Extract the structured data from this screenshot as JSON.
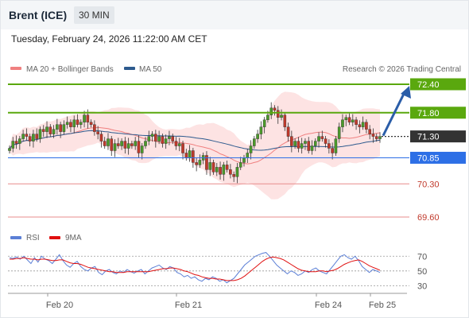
{
  "header": {
    "instrument": "Brent (ICE)",
    "interval": "30 MIN"
  },
  "timestamp": "Tuesday, February 24, 2026 11:22:00 AM CET",
  "legend": [
    {
      "label": "MA 20 + Bollinger Bands",
      "color": "#f08080"
    },
    {
      "label": "MA 50",
      "color": "#2d5a8e"
    }
  ],
  "copyright": "Research © 2026 Trading Central",
  "levels": [
    {
      "label": "72.40",
      "value": 72.4,
      "kind": "resistance"
    },
    {
      "label": "71.80",
      "value": 71.8,
      "kind": "resistance"
    },
    {
      "label": "71.30",
      "value": 71.3,
      "kind": "current"
    },
    {
      "label": "70.85",
      "value": 70.85,
      "kind": "pivot"
    },
    {
      "label": "70.30",
      "value": 70.3,
      "kind": "support"
    },
    {
      "label": "69.60",
      "value": 69.6,
      "kind": "support"
    }
  ],
  "colors": {
    "resistance": "#5aa80e",
    "pivot": "#2d6fe6",
    "current": "#333333",
    "support": "#e88c8c",
    "arrow": "#2a5da8",
    "up": "#4a9a2a",
    "down": "#c0392b",
    "bollinger": "#fcdcdc",
    "ma20": "#f08080",
    "ma50": "#2d5a8e",
    "rsi": "#5b7fd6",
    "rsi_ma": "#e01010"
  },
  "rsi_legend": [
    {
      "label": "RSI",
      "color": "#5b7fd6"
    },
    {
      "label": "9MA",
      "color": "#e01010"
    }
  ],
  "rsi_ticks": [
    "70",
    "50",
    "30"
  ],
  "x_labels": [
    "Feb 20",
    "Feb 21",
    "Feb 24",
    "Feb 25"
  ],
  "chart_data": {
    "type": "candlestick",
    "ylim": [
      69.55,
      72.45
    ],
    "close": [
      71.05,
      71.2,
      71.15,
      71.25,
      71.35,
      71.3,
      71.2,
      71.35,
      71.25,
      71.45,
      71.4,
      71.5,
      71.35,
      71.45,
      71.55,
      71.4,
      71.55,
      71.6,
      71.5,
      71.65,
      71.55,
      71.6,
      71.75,
      71.6,
      71.55,
      71.4,
      71.35,
      71.2,
      71.1,
      71.25,
      71.0,
      71.15,
      71.1,
      71.2,
      71.05,
      71.15,
      71.1,
      71.2,
      70.95,
      71.1,
      71.2,
      71.3,
      71.35,
      71.2,
      71.3,
      71.15,
      71.25,
      71.3,
      71.2,
      71.1,
      71.15,
      70.95,
      70.85,
      71.0,
      70.75,
      70.7,
      70.8,
      70.9,
      70.6,
      70.75,
      70.55,
      70.65,
      70.5,
      70.7,
      70.6,
      70.5,
      70.45,
      70.65,
      70.75,
      70.85,
      70.95,
      71.1,
      71.25,
      71.35,
      71.5,
      71.65,
      71.75,
      71.9,
      71.85,
      71.7,
      71.75,
      71.5,
      71.3,
      71.1,
      71.2,
      71.05,
      71.15,
      71.2,
      71.0,
      71.1,
      71.2,
      71.3,
      71.25,
      71.15,
      71.05,
      70.95,
      71.25,
      71.5,
      71.65,
      71.7,
      71.6,
      71.65,
      71.55,
      71.5,
      71.6,
      71.45,
      71.35,
      71.3,
      71.25,
      71.3
    ]
  },
  "rsi_data": {
    "ylim": [
      25,
      80
    ],
    "rsi": [
      68,
      67,
      69,
      66,
      70,
      65,
      60,
      68,
      62,
      70,
      66,
      64,
      60,
      66,
      72,
      64,
      58,
      55,
      60,
      63,
      56,
      52,
      50,
      54,
      56,
      48,
      45,
      50,
      52,
      48,
      46,
      50,
      48,
      52,
      49,
      47,
      50,
      52,
      46,
      50,
      54,
      56,
      58,
      54,
      52,
      56,
      54,
      48,
      46,
      42,
      44,
      40,
      42,
      38,
      36,
      40,
      38,
      42,
      40,
      36,
      38,
      34,
      37,
      40,
      46,
      52,
      58,
      62,
      66,
      70,
      72,
      74,
      75,
      70,
      64,
      58,
      54,
      50,
      46,
      50,
      48,
      44,
      46,
      50,
      48,
      52,
      54,
      50,
      48,
      46,
      52,
      58,
      64,
      70,
      72,
      68,
      66,
      70,
      64,
      56,
      52,
      48,
      52,
      50,
      48
    ],
    "ma": [
      66,
      66,
      67,
      67,
      68,
      67,
      66,
      66,
      65,
      66,
      66,
      65,
      64,
      64,
      65,
      65,
      63,
      61,
      60,
      60,
      59,
      57,
      55,
      54,
      53,
      52,
      51,
      50,
      49,
      49,
      48,
      48,
      48,
      49,
      49,
      49,
      49,
      49,
      49,
      49,
      50,
      51,
      52,
      53,
      53,
      54,
      54,
      53,
      52,
      50,
      49,
      47,
      45,
      44,
      42,
      41,
      40,
      40,
      39,
      39,
      38,
      37,
      37,
      37,
      38,
      40,
      43,
      47,
      51,
      55,
      59,
      63,
      66,
      68,
      69,
      68,
      67,
      65,
      62,
      59,
      56,
      53,
      51,
      50,
      49,
      49,
      49,
      50,
      50,
      49,
      50,
      51,
      53,
      56,
      59,
      61,
      63,
      64,
      65,
      63,
      60,
      57,
      55,
      53,
      51
    ]
  }
}
